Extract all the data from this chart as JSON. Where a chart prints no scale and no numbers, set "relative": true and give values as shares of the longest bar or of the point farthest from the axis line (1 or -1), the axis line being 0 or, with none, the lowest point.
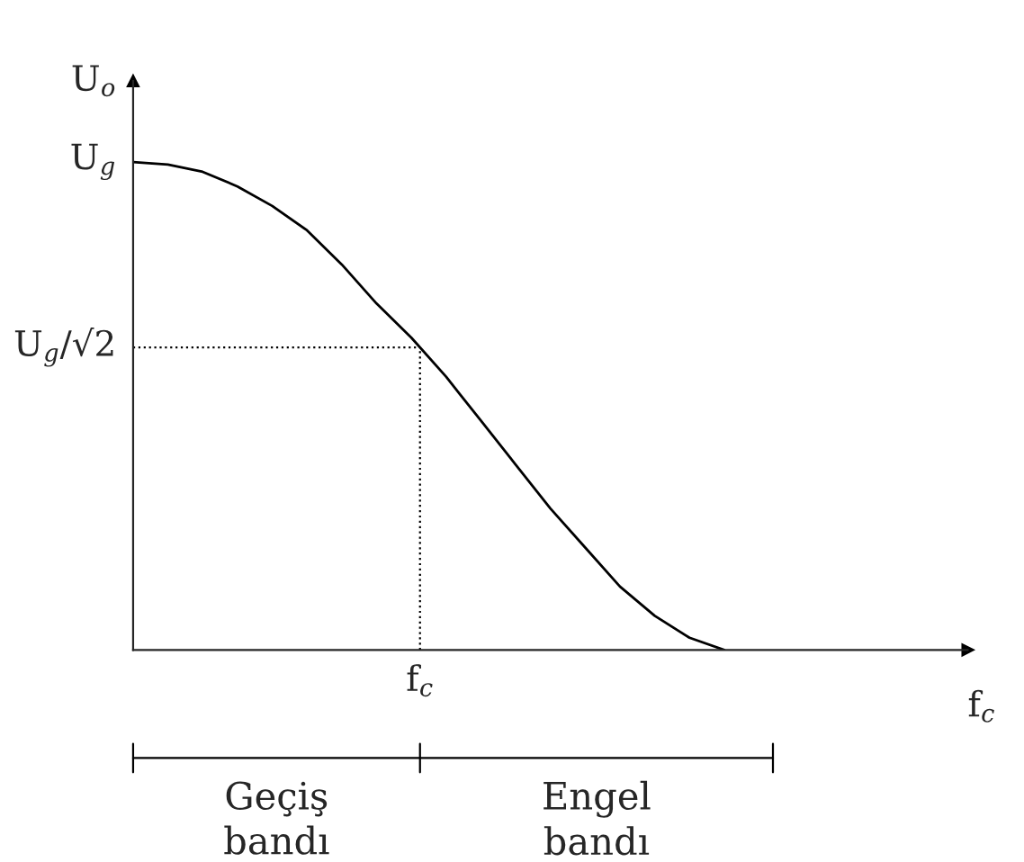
{
  "chart_data": {
    "type": "line",
    "relative": true,
    "xlabel": "f$_{c}$",
    "ylabel": "U$_{o}$",
    "categories": [
      null,
      null,
      null,
      null,
      null,
      null,
      null,
      null,
      null,
      null,
      null,
      null,
      null,
      null,
      null,
      null,
      null,
      null,
      null,
      null,
      null,
      null,
      null,
      null,
      null
    ],
    "series": [
      {
        "color": "#000000",
        "values": [
          1.0,
          0.995,
          0.98,
          0.95,
          0.91,
          0.86,
          0.79,
          0.71,
          0.64,
          0.56,
          0.47,
          0.38,
          0.29,
          0.21,
          0.13,
          0.07,
          0.025,
          0.0,
          null,
          null,
          null,
          null,
          null,
          null,
          null
        ]
      }
    ],
    "ref_lines": [
      {
        "axis": "y",
        "value": 0.62,
        "label": "U$_{g}$/√2",
        "line_style": "dotted",
        "color": "#000000"
      }
    ],
    "annotations": [
      "U$_{g}$",
      "f$_{c}$",
      "Geçiş bandı",
      "Engel bandı"
    ],
    "marker": "none",
    "line_style": "solid"
  }
}
